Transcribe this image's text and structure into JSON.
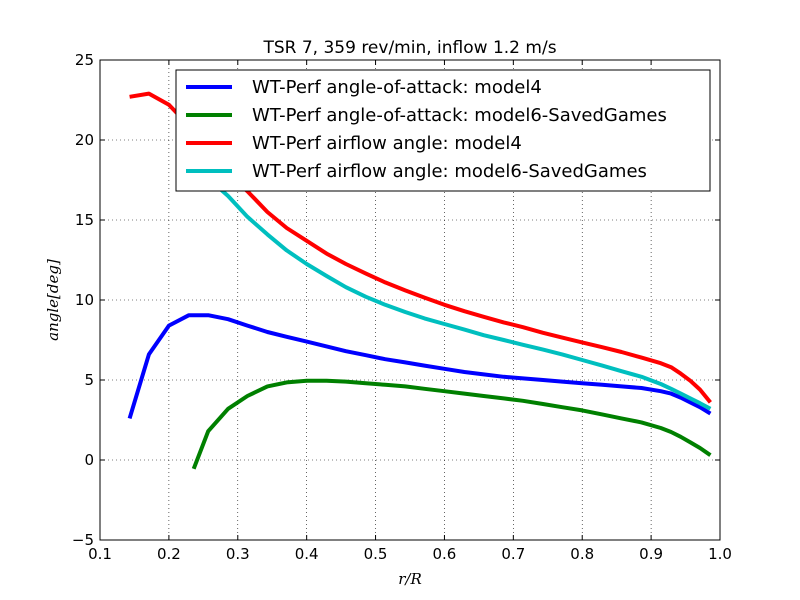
{
  "chart_data": {
    "type": "line",
    "title": "TSR 7, 359 rev/min, inflow 1.2 m/s",
    "xlabel": "r/R",
    "ylabel": "angle[deg]",
    "xlim": [
      0.1,
      1.0
    ],
    "ylim": [
      -5,
      25
    ],
    "xticks": [
      "0.1",
      "0.2",
      "0.3",
      "0.4",
      "0.5",
      "0.6",
      "0.7",
      "0.8",
      "0.9",
      "1.0"
    ],
    "yticks": [
      "−5",
      "0",
      "5",
      "10",
      "15",
      "20",
      "25"
    ],
    "grid": true,
    "legend_position": "top-right",
    "series": [
      {
        "name": "WT-Perf angle-of-attack: model4",
        "color": "#0000ff",
        "x": [
          0.143,
          0.171,
          0.2,
          0.229,
          0.257,
          0.286,
          0.314,
          0.343,
          0.371,
          0.4,
          0.429,
          0.457,
          0.486,
          0.514,
          0.543,
          0.571,
          0.6,
          0.629,
          0.657,
          0.686,
          0.714,
          0.743,
          0.771,
          0.8,
          0.829,
          0.857,
          0.886,
          0.914,
          0.929,
          0.943,
          0.957,
          0.971,
          0.986
        ],
        "y": [
          2.6,
          6.6,
          8.4,
          9.05,
          9.05,
          8.8,
          8.4,
          8.0,
          7.7,
          7.4,
          7.1,
          6.8,
          6.55,
          6.3,
          6.1,
          5.9,
          5.7,
          5.5,
          5.35,
          5.2,
          5.1,
          5.0,
          4.9,
          4.8,
          4.7,
          4.6,
          4.5,
          4.3,
          4.15,
          3.9,
          3.6,
          3.3,
          2.9
        ]
      },
      {
        "name": "WT-Perf angle-of-attack: model6-SavedGames",
        "color": "#008000",
        "x": [
          0.236,
          0.257,
          0.286,
          0.314,
          0.343,
          0.371,
          0.4,
          0.429,
          0.457,
          0.486,
          0.514,
          0.543,
          0.571,
          0.6,
          0.629,
          0.657,
          0.686,
          0.714,
          0.743,
          0.771,
          0.8,
          0.829,
          0.857,
          0.886,
          0.914,
          0.929,
          0.943,
          0.957,
          0.971,
          0.986
        ],
        "y": [
          -0.55,
          1.8,
          3.2,
          4.0,
          4.6,
          4.85,
          4.95,
          4.95,
          4.9,
          4.8,
          4.7,
          4.6,
          4.45,
          4.3,
          4.15,
          4.0,
          3.85,
          3.7,
          3.5,
          3.3,
          3.1,
          2.85,
          2.6,
          2.35,
          2.0,
          1.75,
          1.45,
          1.1,
          0.75,
          0.3
        ]
      },
      {
        "name": "WT-Perf airflow angle: model4",
        "color": "#ff0000",
        "x": [
          0.143,
          0.171,
          0.2,
          0.229,
          0.257,
          0.286,
          0.314,
          0.343,
          0.371,
          0.4,
          0.429,
          0.457,
          0.486,
          0.514,
          0.543,
          0.571,
          0.6,
          0.629,
          0.657,
          0.686,
          0.714,
          0.743,
          0.771,
          0.8,
          0.829,
          0.857,
          0.886,
          0.914,
          0.929,
          0.943,
          0.957,
          0.971,
          0.986
        ],
        "y": [
          22.7,
          22.9,
          22.2,
          20.9,
          19.4,
          17.8,
          16.8,
          15.5,
          14.5,
          13.7,
          12.9,
          12.25,
          11.65,
          11.1,
          10.6,
          10.15,
          9.7,
          9.3,
          8.95,
          8.6,
          8.3,
          7.95,
          7.65,
          7.35,
          7.05,
          6.75,
          6.4,
          6.05,
          5.8,
          5.4,
          4.95,
          4.4,
          3.6
        ]
      },
      {
        "name": "WT-Perf airflow angle: model6-SavedGames",
        "color": "#00bfbf",
        "x": [
          0.229,
          0.257,
          0.286,
          0.314,
          0.343,
          0.371,
          0.4,
          0.429,
          0.457,
          0.486,
          0.514,
          0.543,
          0.571,
          0.6,
          0.629,
          0.657,
          0.686,
          0.714,
          0.743,
          0.771,
          0.8,
          0.829,
          0.857,
          0.886,
          0.914,
          0.929,
          0.943,
          0.957,
          0.971,
          0.986
        ],
        "y": [
          18.5,
          17.6,
          16.5,
          15.2,
          14.1,
          13.1,
          12.25,
          11.5,
          10.8,
          10.2,
          9.7,
          9.25,
          8.85,
          8.5,
          8.15,
          7.8,
          7.5,
          7.2,
          6.9,
          6.6,
          6.25,
          5.9,
          5.55,
          5.2,
          4.75,
          4.45,
          4.15,
          3.85,
          3.55,
          3.2
        ]
      }
    ]
  }
}
